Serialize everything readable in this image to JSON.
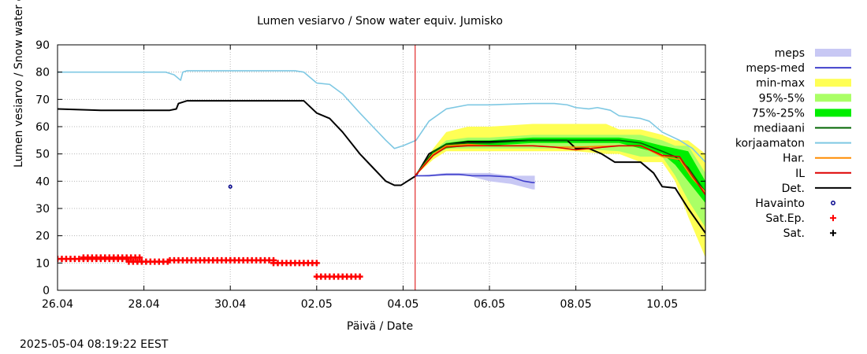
{
  "chart_data": {
    "type": "line",
    "title": "Lumen vesiarvo / Snow water equiv.  Jumisko",
    "xlabel": "Päivä / Date",
    "ylabel": "Lumen vesiarvo / Snow water equiv. (mm)",
    "timestamp": "2025-05-04 08:19:22 EEST",
    "x_unit": "days since 26.04 00:00",
    "xlim": [
      0,
      15.0
    ],
    "ylim": [
      0,
      90
    ],
    "x_ticks": [
      {
        "x": 0,
        "label": "26.04"
      },
      {
        "x": 2,
        "label": "28.04"
      },
      {
        "x": 4,
        "label": "30.04"
      },
      {
        "x": 6,
        "label": "02.05"
      },
      {
        "x": 8,
        "label": "04.05"
      },
      {
        "x": 10,
        "label": "06.05"
      },
      {
        "x": 12,
        "label": "08.05"
      },
      {
        "x": 14,
        "label": "10.05"
      }
    ],
    "y_ticks": [
      0,
      10,
      20,
      30,
      40,
      50,
      60,
      70,
      80,
      90
    ],
    "grid": true,
    "forecast_start": 8.28,
    "bands": [
      {
        "name": "min-max",
        "color": "#ffff55",
        "x": [
          8.28,
          8.7,
          9.0,
          9.5,
          10.0,
          11.0,
          12.0,
          12.7,
          13.0,
          13.5,
          14.0,
          14.3,
          14.6,
          15.0
        ],
        "lower": [
          42,
          48,
          51,
          51,
          51,
          51,
          51,
          50,
          50,
          47,
          47,
          40,
          27,
          12
        ],
        "upper": [
          42,
          52,
          58,
          60,
          60,
          61,
          61,
          61,
          59,
          59,
          57,
          55,
          55,
          50
        ]
      },
      {
        "name": "95%-5%",
        "color": "#aaff66",
        "x": [
          8.28,
          8.7,
          9.0,
          9.5,
          10.0,
          11.0,
          12.0,
          13.0,
          13.5,
          14.0,
          14.3,
          14.6,
          15.0
        ],
        "lower": [
          42,
          49,
          52,
          52,
          52,
          52,
          52,
          51,
          49,
          49,
          42,
          33,
          23
        ],
        "upper": [
          42,
          51,
          55,
          56,
          56,
          57,
          57,
          57,
          57,
          55,
          53,
          53,
          43
        ]
      },
      {
        "name": "75%-25%",
        "color": "#00ee00",
        "x": [
          8.28,
          8.7,
          9.0,
          9.5,
          10.0,
          11.0,
          12.0,
          13.0,
          13.5,
          14.0,
          14.3,
          14.6,
          15.0
        ],
        "lower": [
          42,
          50,
          52,
          53,
          53,
          54,
          54,
          54,
          52,
          50,
          46,
          40,
          32
        ],
        "upper": [
          42,
          51,
          54,
          55,
          55,
          56,
          56,
          56,
          55,
          53,
          52,
          51,
          40
        ]
      },
      {
        "name": "meps",
        "color": "#c8c8f4",
        "x": [
          8.28,
          9.0,
          9.5,
          10.0,
          10.5,
          11.0,
          11.05
        ],
        "lower": [
          42,
          42,
          42,
          40,
          39,
          37,
          37
        ],
        "upper": [
          42,
          43,
          43,
          43,
          42,
          42,
          42
        ]
      }
    ],
    "series": [
      {
        "name": "korjaamaton",
        "color": "#7ec8e3",
        "x": [
          0,
          2.0,
          2.5,
          2.7,
          2.85,
          2.9,
          3.0,
          4.0,
          5.0,
          5.5,
          5.7,
          6.0,
          6.3,
          6.6,
          7.0,
          7.3,
          7.6,
          7.8,
          8.0,
          8.3,
          8.6,
          9.0,
          9.5,
          10.0,
          11.0,
          11.5,
          11.8,
          12.0,
          12.3,
          12.5,
          12.8,
          13.0,
          13.5,
          13.7,
          14.0,
          14.4,
          14.7,
          15.0
        ],
        "y": [
          80,
          80,
          80,
          79,
          77,
          80,
          80.5,
          80.5,
          80.5,
          80.5,
          80,
          76,
          75.5,
          72,
          65,
          60,
          55,
          52,
          53,
          55,
          62,
          66.5,
          68,
          68,
          68.5,
          68.5,
          68,
          67,
          66.5,
          67,
          66,
          64,
          63,
          62,
          58,
          55,
          52,
          47
        ]
      },
      {
        "name": "Det.",
        "color": "#000000",
        "x": [
          0,
          1.0,
          2.0,
          2.6,
          2.75,
          2.8,
          3.0,
          4.0,
          5.0,
          5.7,
          6.0,
          6.3,
          6.6,
          7.0,
          7.3,
          7.6,
          7.8,
          7.95,
          8.1,
          8.3,
          8.6,
          9.0,
          9.5,
          10.0,
          11.0,
          11.5,
          11.8,
          12.0,
          12.3,
          12.6,
          12.9,
          13.5,
          13.8,
          14.0,
          14.3,
          14.6,
          15.0
        ],
        "y": [
          66.5,
          66,
          66,
          66,
          66.5,
          68.5,
          69.5,
          69.5,
          69.5,
          69.5,
          65,
          63,
          58,
          50,
          45,
          40,
          38.5,
          38.5,
          40,
          42,
          50,
          53.5,
          54.5,
          54.5,
          55,
          55,
          55,
          52,
          52,
          50,
          47,
          47,
          43,
          38,
          37.5,
          30,
          21
        ]
      },
      {
        "name": "mediaani",
        "color": "#006400",
        "x": [
          8.28,
          8.7,
          9.0,
          9.5,
          10.0,
          11.0,
          12.0,
          13.0,
          13.5,
          14.0,
          14.3,
          14.6,
          15.0
        ],
        "y": [
          42,
          51,
          53.5,
          54,
          54,
          55,
          55,
          55,
          54,
          51,
          49,
          45,
          36
        ]
      },
      {
        "name": "Har.",
        "color": "#ff8c00",
        "x": [
          8.28,
          8.7,
          9.0,
          9.5,
          10.0,
          11.0,
          11.5,
          12.0,
          13.0,
          13.5,
          14.0,
          14.4,
          14.7,
          15.0
        ],
        "y": [
          42,
          50,
          53,
          53.5,
          53,
          53,
          52.5,
          52.5,
          53,
          53,
          49,
          48,
          41,
          36
        ]
      },
      {
        "name": "IL",
        "color": "#dd0000",
        "x": [
          8.28,
          8.7,
          9.0,
          9.5,
          10.0,
          11.0,
          11.5,
          12.0,
          13.0,
          13.5,
          14.0,
          14.4,
          14.7,
          15.0
        ],
        "y": [
          42,
          49.5,
          52.5,
          53,
          53,
          53,
          52.5,
          51.5,
          53,
          53,
          49.5,
          49,
          42,
          35
        ]
      },
      {
        "name": "meps-med",
        "color": "#4040cc",
        "x": [
          8.28,
          8.6,
          9.0,
          9.3,
          9.6,
          10.0,
          10.5,
          10.8,
          11.0,
          11.05
        ],
        "y": [
          42,
          42,
          42.5,
          42.5,
          42,
          42,
          41.5,
          40,
          39.5,
          39.5
        ]
      }
    ],
    "points": [
      {
        "name": "Havainto",
        "color": "#00008b",
        "marker": "circle",
        "x": [
          4.0
        ],
        "y": [
          38
        ]
      }
    ],
    "sat_ep_segments": [
      {
        "x0": 0.0,
        "x1": 1.65,
        "y": 11.5
      },
      {
        "x0": 0.6,
        "x1": 1.95,
        "y": 12
      },
      {
        "x0": 1.65,
        "x1": 2.6,
        "y": 10.5
      },
      {
        "x0": 2.6,
        "x1": 4.0,
        "y": 11
      },
      {
        "x0": 4.0,
        "x1": 5.0,
        "y": 11
      },
      {
        "x0": 5.0,
        "x1": 6.0,
        "y": 10
      },
      {
        "x0": 6.0,
        "x1": 7.0,
        "y": 5
      }
    ],
    "legend": {
      "placement": "right",
      "entries": [
        {
          "label": "meps",
          "swatch": "band",
          "color": "#c8c8f4"
        },
        {
          "label": "meps-med",
          "swatch": "line",
          "color": "#4040cc"
        },
        {
          "label": "min-max",
          "swatch": "band",
          "color": "#ffff55"
        },
        {
          "label": "95%-5%",
          "swatch": "band",
          "color": "#aaff66"
        },
        {
          "label": "75%-25%",
          "swatch": "band",
          "color": "#00ee00"
        },
        {
          "label": "mediaani",
          "swatch": "line",
          "color": "#006400"
        },
        {
          "label": "korjaamaton",
          "swatch": "line",
          "color": "#7ec8e3"
        },
        {
          "label": "Har.",
          "swatch": "line",
          "color": "#ff8c00"
        },
        {
          "label": "IL",
          "swatch": "line",
          "color": "#dd0000"
        },
        {
          "label": "Det.",
          "swatch": "line",
          "color": "#000000"
        },
        {
          "label": "Havainto",
          "swatch": "circle",
          "color": "#00008b"
        },
        {
          "label": "Sat.Ep.",
          "swatch": "plus",
          "color": "#ff0000"
        },
        {
          "label": "Sat.",
          "swatch": "plus",
          "color": "#000000"
        }
      ]
    }
  }
}
